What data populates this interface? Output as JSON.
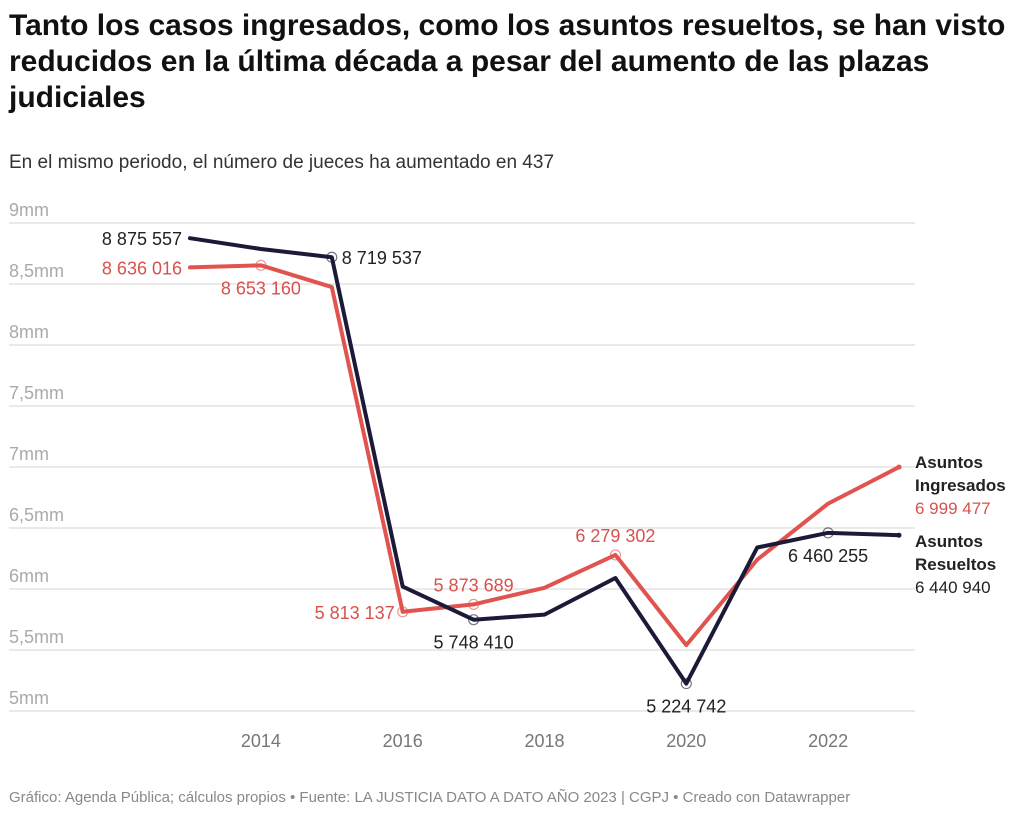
{
  "title": "Tanto los casos ingresados, como los asuntos resueltos, se han visto reducidos en la última década a pesar del aumento de las plazas judiciales",
  "subtitle": "En el mismo periodo, el número de jueces ha aumentado en 437",
  "footer": "Gráfico: Agenda Pública; cálculos propios • Fuente: LA JUSTICIA DATO A DATO AÑO 2023 | CGPJ • Creado con Datawrapper",
  "chart_data": {
    "type": "line",
    "x": [
      2013,
      2014,
      2015,
      2016,
      2017,
      2018,
      2019,
      2020,
      2021,
      2022,
      2023
    ],
    "ylim": [
      5000000,
      9000000
    ],
    "xlim": [
      2013,
      2023
    ],
    "y_ticks": [
      {
        "v": 9000000,
        "label": "9mm"
      },
      {
        "v": 8500000,
        "label": "8,5mm"
      },
      {
        "v": 8000000,
        "label": "8mm"
      },
      {
        "v": 7500000,
        "label": "7,5mm"
      },
      {
        "v": 7000000,
        "label": "7mm"
      },
      {
        "v": 6500000,
        "label": "6,5mm"
      },
      {
        "v": 6000000,
        "label": "6mm"
      },
      {
        "v": 5500000,
        "label": "5,5mm"
      },
      {
        "v": 5000000,
        "label": "5mm"
      }
    ],
    "x_ticks": [
      2014,
      2016,
      2018,
      2020,
      2022
    ],
    "grid": true,
    "series": [
      {
        "name": "Asuntos Ingresados",
        "color": "#e0534f",
        "values": [
          8636016,
          8653160,
          8475000,
          5813137,
          5873689,
          6010000,
          6279302,
          5540000,
          6240000,
          6700000,
          6999477
        ],
        "labels": [
          {
            "i": 0,
            "text": "8 636 016",
            "pos": "left"
          },
          {
            "i": 1,
            "text": "8 653 160",
            "pos": "below"
          },
          {
            "i": 3,
            "text": "5 813 137",
            "pos": "left"
          },
          {
            "i": 4,
            "text": "5 873 689",
            "pos": "above"
          },
          {
            "i": 6,
            "text": "6 279 302",
            "pos": "above"
          }
        ],
        "end_label": {
          "name_lines": [
            "Asuntos",
            "Ingresados"
          ],
          "value": "6 999 477"
        }
      },
      {
        "name": "Asuntos Resueltos",
        "color": "#1b1a38",
        "values": [
          8875557,
          8787000,
          8719537,
          6020000,
          5748410,
          5790000,
          6090000,
          5224742,
          6340000,
          6460255,
          6440940
        ],
        "labels": [
          {
            "i": 0,
            "text": "8 875 557",
            "pos": "left"
          },
          {
            "i": 2,
            "text": "8 719 537",
            "pos": "right"
          },
          {
            "i": 4,
            "text": "5 748 410",
            "pos": "below"
          },
          {
            "i": 7,
            "text": "5 224 742",
            "pos": "below"
          },
          {
            "i": 9,
            "text": "6 460 255",
            "pos": "below"
          }
        ],
        "end_label": {
          "name_lines": [
            "Asuntos",
            "Resueltos"
          ],
          "value": "6 440 940"
        }
      }
    ]
  }
}
